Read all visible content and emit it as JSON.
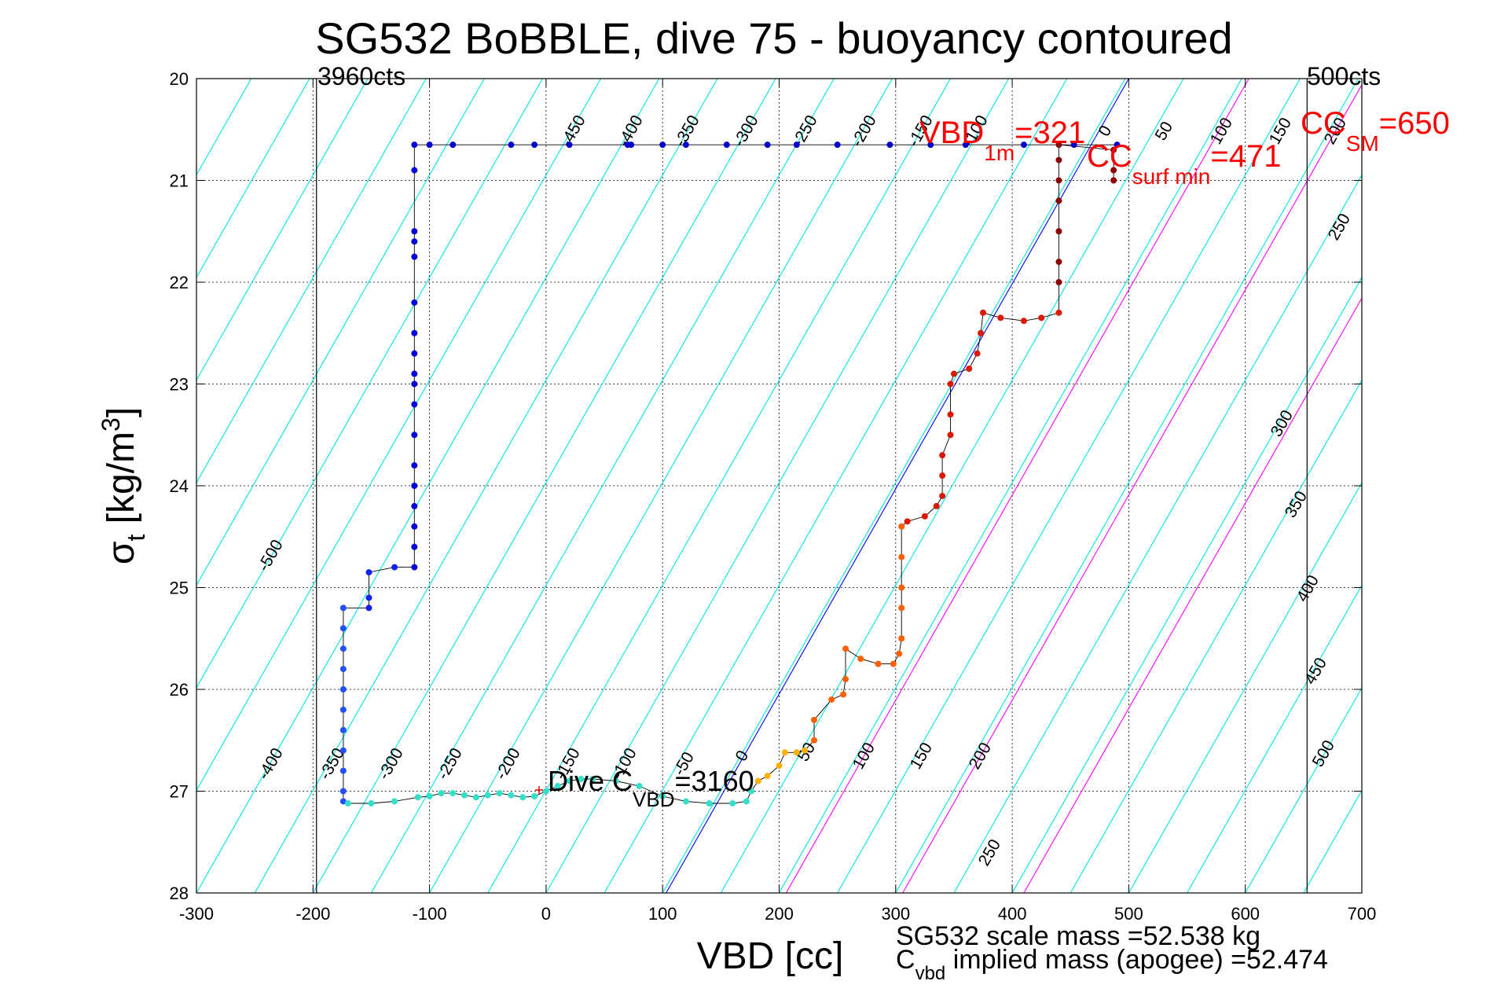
{
  "chart_data": {
    "type": "scatter",
    "title": "SG532 BoBBLE, dive 75 - buoyancy contoured",
    "xlabel": "VBD [cc]",
    "ylabel_main": "σ",
    "ylabel_sub": "t",
    "ylabel_unit": " [kg/m",
    "ylabel_sup": "3",
    "ylabel_close": "]",
    "xlim": [
      -300,
      700
    ],
    "ylim": [
      20,
      28
    ],
    "y_reversed": true,
    "grid": true,
    "x_ticks": [
      -300,
      -200,
      -100,
      0,
      100,
      200,
      300,
      400,
      500,
      600,
      700
    ],
    "y_ticks": [
      20,
      21,
      22,
      23,
      24,
      25,
      26,
      27,
      28
    ],
    "reference_lines": {
      "left_counts": {
        "x": -197,
        "label": "3960cts"
      },
      "right_counts": {
        "x": 653,
        "label": "500cts"
      }
    },
    "buoyancy_contours": {
      "color": "#00e5e5",
      "spacing_cc": 50,
      "labels_top": [
        "-450",
        "-400",
        "-350",
        "-300",
        "-250",
        "-200",
        "-150",
        "-100",
        "0",
        "50",
        "100",
        "150",
        "200"
      ],
      "labels_right": [
        "250",
        "300",
        "350",
        "400",
        "450",
        "500"
      ],
      "labels_left": [
        "-500",
        "-400"
      ],
      "labels_bottom": [
        "-350",
        "-300",
        "-250",
        "-200",
        "-150",
        "-100",
        "-50",
        "0",
        "50",
        "100",
        "150",
        "200",
        "250"
      ]
    },
    "magenta_lines": {
      "color": "#ff00ff",
      "count": 3
    },
    "blue_line": {
      "color": "#0000ff",
      "x_at_28": 103,
      "x_at_20": 500
    },
    "series": [
      {
        "segment": "descent_surface",
        "color": "#0000cc",
        "points": [
          [
            490,
            20.65
          ],
          [
            453,
            20.65
          ],
          [
            410,
            20.65
          ],
          [
            360,
            20.65
          ],
          [
            330,
            20.65
          ],
          [
            295,
            20.65
          ],
          [
            250,
            20.65
          ],
          [
            215,
            20.65
          ],
          [
            190,
            20.65
          ],
          [
            155,
            20.65
          ],
          [
            120,
            20.65
          ],
          [
            100,
            20.65
          ],
          [
            73,
            20.65
          ],
          [
            70,
            20.65
          ],
          [
            20,
            20.65
          ],
          [
            -10,
            20.65
          ],
          [
            -30,
            20.65
          ],
          [
            -80,
            20.65
          ],
          [
            -100,
            20.65
          ]
        ]
      },
      {
        "segment": "descent_column_1",
        "color": "#0000dd",
        "x": -113,
        "y_values": [
          20.65,
          20.9,
          21.5,
          21.6,
          21.75,
          22.2,
          22.5,
          22.7,
          22.9,
          23.0,
          23.2,
          23.5,
          23.8,
          24.0,
          24.2,
          24.4,
          24.6,
          24.8
        ]
      },
      {
        "segment": "descent_step_1",
        "color": "#1020ee",
        "points": [
          [
            -130,
            24.8
          ],
          [
            -152,
            24.85
          ],
          [
            -152,
            25.1
          ],
          [
            -152,
            25.2
          ]
        ]
      },
      {
        "segment": "descent_column_2",
        "color": "#2050ff",
        "x": -174,
        "y_values": [
          25.2,
          25.4,
          25.6,
          25.8,
          26.0,
          26.2,
          26.4,
          26.6,
          26.8,
          27.0,
          27.1
        ]
      },
      {
        "segment": "bottom",
        "color": "#30e0c8",
        "points": [
          [
            -170,
            27.12
          ],
          [
            -150,
            27.12
          ],
          [
            -130,
            27.1
          ],
          [
            -110,
            27.06
          ],
          [
            -100,
            27.05
          ],
          [
            -90,
            27.02
          ],
          [
            -80,
            27.02
          ],
          [
            -70,
            27.04
          ],
          [
            -60,
            27.06
          ],
          [
            -50,
            27.04
          ],
          [
            -40,
            27.02
          ],
          [
            -30,
            27.04
          ],
          [
            -20,
            27.06
          ],
          [
            -10,
            27.05
          ],
          [
            0,
            27.0
          ],
          [
            10,
            26.95
          ],
          [
            20,
            26.9
          ],
          [
            30,
            26.88
          ],
          [
            40,
            26.88
          ],
          [
            60,
            26.9
          ],
          [
            80,
            26.95
          ],
          [
            100,
            27.05
          ],
          [
            120,
            27.1
          ],
          [
            140,
            27.12
          ],
          [
            160,
            27.12
          ],
          [
            172,
            27.1
          ],
          [
            176,
            27.0
          ]
        ]
      },
      {
        "segment": "ascent_warm",
        "color": "#ffb000",
        "points": [
          [
            182,
            26.9
          ],
          [
            190,
            26.85
          ],
          [
            200,
            26.75
          ],
          [
            205,
            26.62
          ],
          [
            215,
            26.62
          ],
          [
            222,
            26.6
          ]
        ]
      },
      {
        "segment": "ascent_orange",
        "color": "#ff6000",
        "points": [
          [
            230,
            26.5
          ],
          [
            230,
            26.3
          ],
          [
            245,
            26.1
          ],
          [
            255,
            26.05
          ],
          [
            257,
            25.9
          ],
          [
            257,
            25.6
          ],
          [
            270,
            25.7
          ],
          [
            285,
            25.75
          ],
          [
            298,
            25.75
          ],
          [
            303,
            25.65
          ],
          [
            305,
            25.5
          ],
          [
            305,
            25.2
          ],
          [
            305,
            25.0
          ],
          [
            305,
            24.7
          ],
          [
            305,
            24.4
          ]
        ]
      },
      {
        "segment": "ascent_red",
        "color": "#dd1800",
        "points": [
          [
            310,
            24.35
          ],
          [
            325,
            24.3
          ],
          [
            335,
            24.2
          ],
          [
            340,
            24.1
          ],
          [
            340,
            23.9
          ],
          [
            340,
            23.7
          ],
          [
            347,
            23.5
          ],
          [
            347,
            23.3
          ],
          [
            347,
            23.0
          ],
          [
            350,
            22.9
          ],
          [
            363,
            22.85
          ],
          [
            370,
            22.7
          ],
          [
            373,
            22.5
          ],
          [
            375,
            22.3
          ],
          [
            390,
            22.35
          ],
          [
            410,
            22.38
          ],
          [
            425,
            22.35
          ],
          [
            440,
            22.3
          ]
        ]
      },
      {
        "segment": "ascent_top",
        "color": "#8b0000",
        "points": [
          [
            440,
            22.0
          ],
          [
            440,
            21.8
          ],
          [
            440,
            21.5
          ],
          [
            440,
            21.2
          ],
          [
            440,
            21.0
          ],
          [
            440,
            20.8
          ],
          [
            440,
            20.65
          ],
          [
            487,
            20.7
          ],
          [
            487,
            20.9
          ],
          [
            487,
            21.0
          ]
        ]
      }
    ],
    "annotations": {
      "vbd_1m": {
        "text": "VBD",
        "sub": "1m",
        "tail": "=321",
        "color": "#ff0000"
      },
      "cc_surf_min": {
        "text": "CC",
        "sub": "surf min",
        "tail": "=471",
        "color": "#ff0000"
      },
      "cc_sm": {
        "text": "CC",
        "sub": "SM",
        "tail": "=650",
        "color": "#ff0000"
      },
      "dive_c_vbd": {
        "text": "Dive C",
        "sub": "VBD",
        "tail": "=3160",
        "color": "#000000"
      },
      "scale_mass": {
        "text": "SG532 scale mass =52.538 kg"
      },
      "implied_mass": {
        "text": "C",
        "sub": "vbd",
        "tail": " implied mass (apogee) =52.474"
      }
    }
  }
}
